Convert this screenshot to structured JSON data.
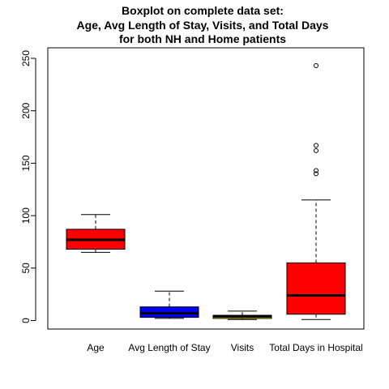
{
  "chart_data": {
    "type": "boxplot",
    "title": "Boxplot on complete data set:",
    "subtitle": [
      "Age, Avg Length of Stay, Visits, and Total Days",
      "for both NH and Home patients"
    ],
    "xlabel": "",
    "ylabel": "",
    "ylim": [
      0,
      250
    ],
    "yticks": [
      0,
      50,
      100,
      150,
      200,
      250
    ],
    "ytick_labels": [
      "0",
      "50",
      "100",
      "150",
      "200",
      "250"
    ],
    "grid": false,
    "legend": "none",
    "categories": [
      "Age",
      "Avg Length of Stay",
      "Visits",
      "Total Days in Hospital"
    ],
    "boxes": [
      {
        "category": "Age",
        "color": "#ff0000",
        "min": 65,
        "q1": 68,
        "median": 77,
        "q3": 87,
        "max": 101,
        "outliers": []
      },
      {
        "category": "Avg Length of Stay",
        "color": "#0000ff",
        "min": 2,
        "q1": 3,
        "median": 7,
        "q3": 13,
        "max": 28,
        "outliers": []
      },
      {
        "category": "Visits",
        "color": "#ffff00",
        "min": 1,
        "q1": 2,
        "median": 4,
        "q3": 5,
        "max": 9,
        "outliers": []
      },
      {
        "category": "Total Days in Hospital",
        "color": "#ff0000",
        "min": 1,
        "q1": 6,
        "median": 24,
        "q3": 55,
        "max": 115,
        "outliers": [
          140,
          143,
          162,
          167,
          243
        ]
      }
    ]
  }
}
